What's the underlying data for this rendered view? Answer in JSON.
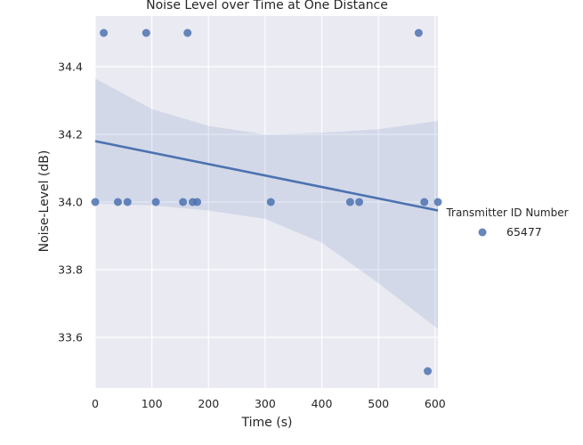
{
  "chart_data": {
    "type": "scatter",
    "title": "Noise Level over Time at One Distance",
    "xlabel": "Time (s)",
    "ylabel": "Noise-Level (dB)",
    "xlim": [
      0,
      605
    ],
    "ylim": [
      33.45,
      34.55
    ],
    "x_ticks": [
      0,
      100,
      200,
      300,
      400,
      500,
      600
    ],
    "y_ticks": [
      33.6,
      33.8,
      34.0,
      34.2,
      34.4
    ],
    "grid": true,
    "legend": {
      "title": "Transmitter ID Number",
      "placement": "right",
      "entries": [
        "65477"
      ]
    },
    "series": [
      {
        "name": "65477",
        "color": "#4c72b0",
        "points": [
          {
            "x": 0,
            "y": 34.0
          },
          {
            "x": 15,
            "y": 34.5
          },
          {
            "x": 40,
            "y": 34.0
          },
          {
            "x": 57,
            "y": 34.0
          },
          {
            "x": 90,
            "y": 34.5
          },
          {
            "x": 107,
            "y": 34.0
          },
          {
            "x": 155,
            "y": 34.0
          },
          {
            "x": 163,
            "y": 34.5
          },
          {
            "x": 172,
            "y": 34.0
          },
          {
            "x": 180,
            "y": 34.0
          },
          {
            "x": 310,
            "y": 34.0
          },
          {
            "x": 450,
            "y": 34.0
          },
          {
            "x": 466,
            "y": 34.0
          },
          {
            "x": 571,
            "y": 34.5
          },
          {
            "x": 581,
            "y": 34.0
          },
          {
            "x": 587,
            "y": 33.5
          },
          {
            "x": 605,
            "y": 34.0
          }
        ],
        "regression": {
          "x": [
            0,
            605
          ],
          "y": [
            34.18,
            33.975
          ]
        },
        "confidence_band": {
          "x": [
            0,
            100,
            200,
            300,
            400,
            500,
            605
          ],
          "upper": [
            34.365,
            34.275,
            34.225,
            34.2,
            34.205,
            34.215,
            34.24
          ],
          "lower": [
            33.995,
            33.99,
            33.975,
            33.95,
            33.88,
            33.76,
            33.625
          ]
        }
      }
    ]
  }
}
